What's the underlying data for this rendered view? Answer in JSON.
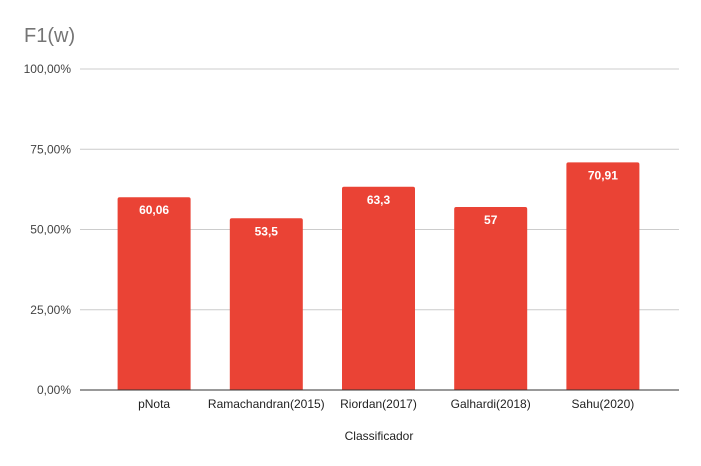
{
  "chart_data": {
    "type": "bar",
    "title": "F1(w)",
    "xlabel": "Classificador",
    "ylabel": "",
    "categories": [
      "pNota",
      "Ramachandran(2015)",
      "Riordan(2017)",
      "Galhardi(2018)",
      "Sahu(2020)"
    ],
    "values": [
      60.06,
      53.5,
      63.3,
      57,
      70.91
    ],
    "data_labels": [
      "60,06",
      "53,5",
      "63,3",
      "57",
      "70,91"
    ],
    "ylim": [
      0,
      100
    ],
    "y_ticks": [
      {
        "value": 0,
        "label": "0,00%"
      },
      {
        "value": 25,
        "label": "25,00%"
      },
      {
        "value": 50,
        "label": "50,00%"
      },
      {
        "value": 75,
        "label": "75,00%"
      },
      {
        "value": 100,
        "label": "100,00%"
      }
    ],
    "grid": true,
    "legend": "none",
    "colors": {
      "bar": "#ea4335"
    }
  }
}
